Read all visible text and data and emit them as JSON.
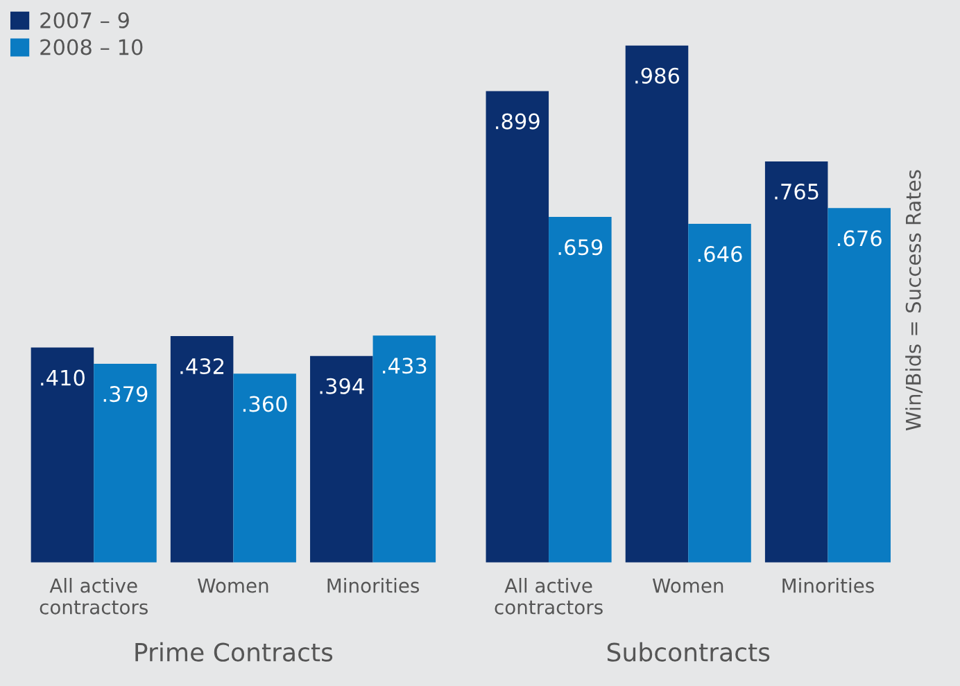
{
  "chart_data": {
    "type": "bar",
    "categories": [
      "All active\ncontractors",
      "Women",
      "Minorities",
      "All active\ncontractors",
      "Women",
      "Minorities"
    ],
    "series": [
      {
        "name": "2007 – 9",
        "color": "#0b2f6f",
        "values": [
          0.41,
          0.432,
          0.394,
          0.899,
          0.986,
          0.765
        ],
        "value_labels": [
          ".410",
          ".432",
          ".394",
          ".899",
          ".986",
          ".765"
        ]
      },
      {
        "name": "2008 – 10",
        "color": "#0a7bc2",
        "values": [
          0.379,
          0.36,
          0.433,
          0.659,
          0.646,
          0.676
        ],
        "value_labels": [
          ".379",
          ".360",
          ".433",
          ".659",
          ".646",
          ".676"
        ]
      }
    ],
    "ylabel": "Win/Bids = Success Rates",
    "annotations": [
      "Prime Contracts",
      "Subcontracts"
    ],
    "legend": "top left",
    "grid": false
  }
}
